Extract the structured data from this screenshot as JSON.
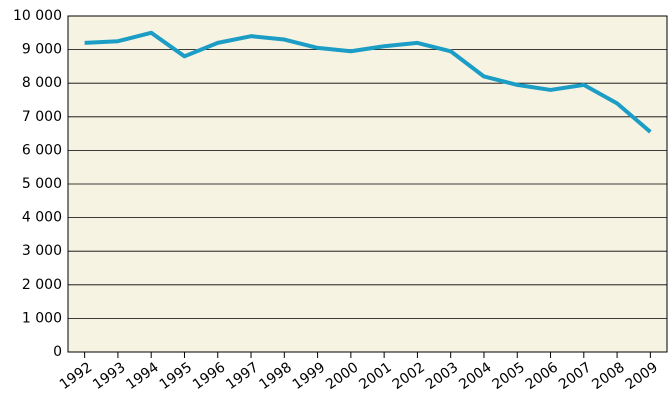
{
  "chart_data": {
    "type": "line",
    "categories": [
      "1992",
      "1993",
      "1994",
      "1995",
      "1996",
      "1997",
      "1998",
      "1999",
      "2000",
      "2001",
      "2002",
      "2003",
      "2004",
      "2005",
      "2006",
      "2007",
      "2008",
      "2009"
    ],
    "series": [
      {
        "color": "#1b9dc6",
        "values": [
          9200,
          9250,
          9500,
          8800,
          9200,
          9400,
          9300,
          9050,
          8950,
          9100,
          9200,
          8950,
          8200,
          7950,
          7800,
          7950,
          7400,
          6550
        ]
      }
    ],
    "ylim": [
      0,
      10000
    ],
    "yticks": [
      0,
      {
        "value": 1000,
        "label": "1 000"
      },
      {
        "value": 2000,
        "label": "2 000"
      },
      {
        "value": 3000,
        "label": "3 000"
      },
      {
        "value": 4000,
        "label": "4 000"
      },
      {
        "value": 5000,
        "label": "5 000"
      },
      {
        "value": 6000,
        "label": "6 000"
      },
      {
        "value": 7000,
        "label": "7 000"
      },
      {
        "value": 8000,
        "label": "8 000"
      },
      {
        "value": 9000,
        "label": "9 000"
      },
      {
        "value": 10000,
        "label": "10 000"
      }
    ],
    "grid": true,
    "background": "#f6f3e2"
  }
}
